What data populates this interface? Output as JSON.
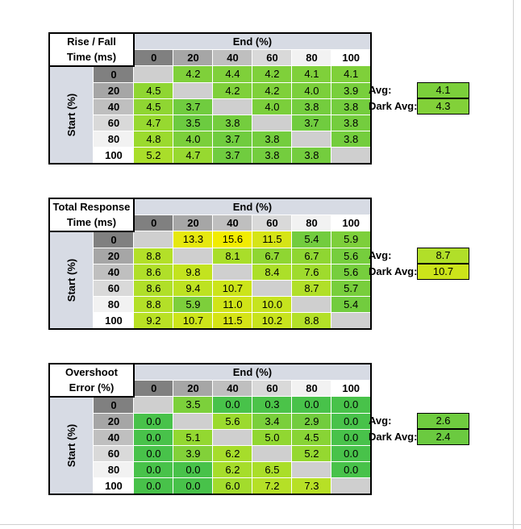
{
  "tables": [
    {
      "title_line1": "Rise / Fall",
      "title_line2": "Time (ms)",
      "end_label": "End (%)",
      "start_label": "Start (%)",
      "columns": [
        "0",
        "20",
        "40",
        "60",
        "80",
        "100"
      ],
      "rows": [
        {
          "label": "0",
          "values": [
            "",
            "4.2",
            "4.4",
            "4.2",
            "4.1",
            "4.1"
          ],
          "colors": [
            "#cfcfcf",
            "#7fd03a",
            "#7fd03a",
            "#7fd03a",
            "#7fd03a",
            "#7fd03a"
          ]
        },
        {
          "label": "20",
          "values": [
            "4.5",
            "",
            "4.2",
            "4.2",
            "4.0",
            "3.9"
          ],
          "colors": [
            "#8fd632",
            "#cfcfcf",
            "#7fd03a",
            "#7fd03a",
            "#7bcf3b",
            "#78cf3c"
          ]
        },
        {
          "label": "40",
          "values": [
            "4.5",
            "3.7",
            "",
            "4.0",
            "3.8",
            "3.8"
          ],
          "colors": [
            "#8fd632",
            "#70cc3f",
            "#cfcfcf",
            "#7bcf3b",
            "#74cd3e",
            "#74cd3e"
          ]
        },
        {
          "label": "60",
          "values": [
            "4.7",
            "3.5",
            "3.8",
            "",
            "3.7",
            "3.8"
          ],
          "colors": [
            "#97d930",
            "#6ccb40",
            "#74cd3e",
            "#cfcfcf",
            "#70cc3f",
            "#74cd3e"
          ]
        },
        {
          "label": "80",
          "values": [
            "4.8",
            "4.0",
            "3.7",
            "3.8",
            "",
            "3.8"
          ],
          "colors": [
            "#9bda2e",
            "#7bcf3b",
            "#70cc3f",
            "#74cd3e",
            "#cfcfcf",
            "#74cd3e"
          ]
        },
        {
          "label": "100",
          "values": [
            "5.2",
            "4.7",
            "3.7",
            "3.8",
            "3.8",
            ""
          ],
          "colors": [
            "#a9de2a",
            "#97d930",
            "#70cc3f",
            "#74cd3e",
            "#74cd3e",
            "#cfcfcf"
          ]
        }
      ],
      "avg_label": "Avg:",
      "avg_value": "4.1",
      "avg_color": "#7bcf3b",
      "dark_avg_label": "Dark Avg:",
      "dark_avg_value": "4.3",
      "dark_avg_color": "#82d139"
    },
    {
      "title_line1": "Total Response",
      "title_line2": "Time (ms)",
      "end_label": "End (%)",
      "start_label": "Start (%)",
      "columns": [
        "0",
        "20",
        "40",
        "60",
        "80",
        "100"
      ],
      "rows": [
        {
          "label": "0",
          "values": [
            "",
            "13.3",
            "15.6",
            "11.5",
            "5.4",
            "5.9"
          ],
          "colors": [
            "#cfcfcf",
            "#e6e80f",
            "#f2ec00",
            "#d6e416",
            "#72cc3e",
            "#7dcf3b"
          ]
        },
        {
          "label": "20",
          "values": [
            "8.8",
            "",
            "8.1",
            "6.7",
            "6.7",
            "5.6"
          ],
          "colors": [
            "#b3e028",
            "#cfcfcf",
            "#a9de2a",
            "#8fd632",
            "#8fd632",
            "#76ce3d"
          ]
        },
        {
          "label": "40",
          "values": [
            "8.6",
            "9.8",
            "",
            "8.4",
            "7.6",
            "5.6"
          ],
          "colors": [
            "#b0df29",
            "#c3e31f",
            "#cfcfcf",
            "#acdf29",
            "#9fdb2d",
            "#76ce3d"
          ]
        },
        {
          "label": "60",
          "values": [
            "8.6",
            "9.4",
            "10.7",
            "",
            "8.7",
            "5.7"
          ],
          "colors": [
            "#b0df29",
            "#bde222",
            "#cce41a",
            "#cfcfcf",
            "#b1df29",
            "#78ce3c"
          ]
        },
        {
          "label": "80",
          "values": [
            "8.8",
            "5.9",
            "11.0",
            "10.0",
            "",
            "5.4"
          ],
          "colors": [
            "#b3e028",
            "#7dcf3b",
            "#d0e418",
            "#c6e31e",
            "#cfcfcf",
            "#72cc3e"
          ]
        },
        {
          "label": "100",
          "values": [
            "9.2",
            "10.7",
            "11.5",
            "10.2",
            "8.8",
            ""
          ],
          "colors": [
            "#b9e124",
            "#cce41a",
            "#d6e416",
            "#c8e31d",
            "#b3e028",
            "#cfcfcf"
          ]
        }
      ],
      "avg_label": "Avg:",
      "avg_value": "8.7",
      "avg_color": "#b1df29",
      "dark_avg_label": "Dark Avg:",
      "dark_avg_value": "10.7",
      "dark_avg_color": "#cce41a"
    },
    {
      "title_line1": "Overshoot",
      "title_line2": "Error (%)",
      "end_label": "End (%)",
      "start_label": "Start (%)",
      "columns": [
        "0",
        "20",
        "40",
        "60",
        "80",
        "100"
      ],
      "rows": [
        {
          "label": "0",
          "values": [
            "",
            "3.5",
            "0.0",
            "0.3",
            "0.0",
            "0.0"
          ],
          "colors": [
            "#cfcfcf",
            "#7cd03b",
            "#48c24a",
            "#4bc349",
            "#48c24a",
            "#48c24a"
          ]
        },
        {
          "label": "20",
          "values": [
            "0.0",
            "",
            "5.6",
            "3.4",
            "2.9",
            "0.0"
          ],
          "colors": [
            "#48c24a",
            "#cfcfcf",
            "#9bda2e",
            "#7acf3b",
            "#72cc3e",
            "#48c24a"
          ]
        },
        {
          "label": "40",
          "values": [
            "0.0",
            "5.1",
            "",
            "5.0",
            "4.5",
            "0.0"
          ],
          "colors": [
            "#48c24a",
            "#93d831",
            "#cfcfcf",
            "#91d731",
            "#88d435",
            "#48c24a"
          ]
        },
        {
          "label": "60",
          "values": [
            "0.0",
            "3.9",
            "6.2",
            "",
            "5.2",
            "0.0"
          ],
          "colors": [
            "#48c24a",
            "#82d139",
            "#a6dd2b",
            "#cfcfcf",
            "#95d830",
            "#48c24a"
          ]
        },
        {
          "label": "80",
          "values": [
            "0.0",
            "0.0",
            "6.2",
            "6.5",
            "",
            "0.0"
          ],
          "colors": [
            "#48c24a",
            "#48c24a",
            "#a6dd2b",
            "#aade29",
            "#cfcfcf",
            "#48c24a"
          ]
        },
        {
          "label": "100",
          "values": [
            "0.0",
            "0.0",
            "6.0",
            "7.2",
            "7.3",
            ""
          ],
          "colors": [
            "#48c24a",
            "#48c24a",
            "#a3dc2c",
            "#b5e027",
            "#b7e026",
            "#cfcfcf"
          ]
        }
      ],
      "avg_label": "Avg:",
      "avg_value": "2.6",
      "avg_color": "#6fcc3f",
      "dark_avg_label": "Dark Avg:",
      "dark_avg_value": "2.4",
      "dark_avg_color": "#6bca40"
    }
  ]
}
